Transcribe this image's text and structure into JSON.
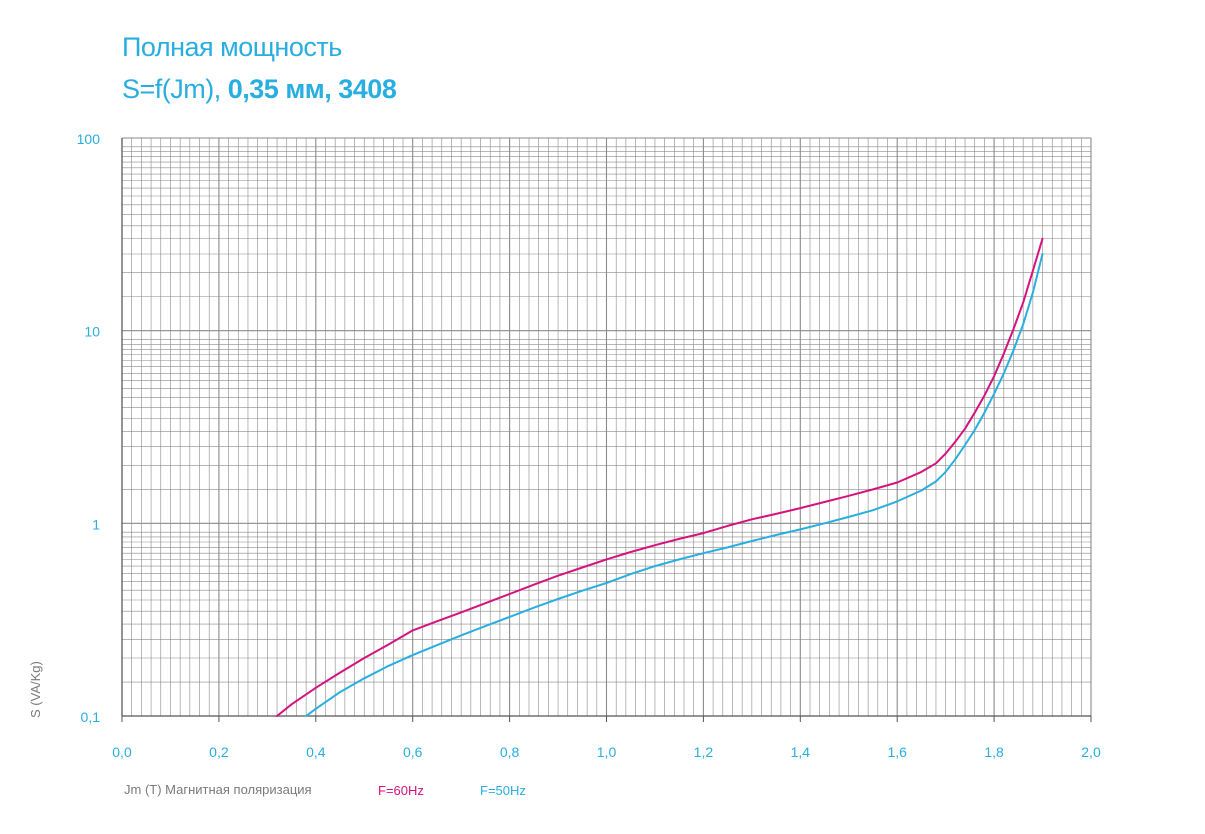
{
  "title": {
    "line1": "Полная мощность",
    "line2_prefix": "S=f(Jm), ",
    "line2_bold": "0,35 мм, 3408"
  },
  "chart_data": {
    "type": "line",
    "title": "Полная мощность S=f(Jm), 0,35 мм, 3408",
    "xlabel": "Jm (T) Магнитная поляризация",
    "ylabel": "S (VA/Kg)",
    "xlim": [
      0,
      2
    ],
    "ylim": [
      0.1,
      100
    ],
    "yscale": "log",
    "grid": true,
    "x_ticks": [
      "0,0",
      "0,2",
      "0,4",
      "0,6",
      "0,8",
      "1,0",
      "1,2",
      "1,4",
      "1,6",
      "1,8",
      "2,0"
    ],
    "y_ticks": [
      "0,1",
      "1",
      "10",
      "100"
    ],
    "colors": {
      "grid": "#8a8a8a",
      "text": "#29aee0",
      "axis_label": "#7a7a7a"
    },
    "series": [
      {
        "name": "F=60Hz",
        "color": "#d6127e",
        "x": [
          0.32,
          0.35,
          0.4,
          0.45,
          0.5,
          0.55,
          0.6,
          0.65,
          0.7,
          0.75,
          0.8,
          0.85,
          0.9,
          0.95,
          1.0,
          1.05,
          1.1,
          1.15,
          1.2,
          1.25,
          1.3,
          1.35,
          1.4,
          1.45,
          1.5,
          1.55,
          1.6,
          1.65,
          1.68,
          1.7,
          1.72,
          1.74,
          1.76,
          1.78,
          1.8,
          1.82,
          1.84,
          1.86,
          1.88,
          1.9
        ],
        "y": [
          0.1,
          0.115,
          0.14,
          0.168,
          0.2,
          0.235,
          0.278,
          0.31,
          0.345,
          0.385,
          0.43,
          0.48,
          0.535,
          0.59,
          0.65,
          0.71,
          0.77,
          0.83,
          0.89,
          0.97,
          1.05,
          1.12,
          1.2,
          1.29,
          1.39,
          1.5,
          1.63,
          1.85,
          2.05,
          2.3,
          2.65,
          3.1,
          3.75,
          4.6,
          5.8,
          7.6,
          10.2,
          14.0,
          20.5,
          30.0
        ]
      },
      {
        "name": "F=50Hz",
        "color": "#29aee0",
        "x": [
          0.38,
          0.4,
          0.45,
          0.5,
          0.55,
          0.6,
          0.65,
          0.7,
          0.75,
          0.8,
          0.85,
          0.9,
          0.95,
          1.0,
          1.05,
          1.1,
          1.15,
          1.2,
          1.25,
          1.3,
          1.35,
          1.4,
          1.45,
          1.5,
          1.55,
          1.6,
          1.65,
          1.68,
          1.7,
          1.72,
          1.74,
          1.76,
          1.78,
          1.8,
          1.82,
          1.84,
          1.86,
          1.88,
          1.9
        ],
        "y": [
          0.1,
          0.109,
          0.133,
          0.157,
          0.182,
          0.207,
          0.233,
          0.262,
          0.293,
          0.327,
          0.365,
          0.405,
          0.447,
          0.49,
          0.545,
          0.6,
          0.65,
          0.7,
          0.75,
          0.81,
          0.87,
          0.93,
          1.0,
          1.08,
          1.17,
          1.3,
          1.48,
          1.65,
          1.85,
          2.15,
          2.55,
          3.05,
          3.75,
          4.7,
          6.0,
          7.9,
          10.8,
          15.8,
          25.0
        ]
      }
    ]
  }
}
